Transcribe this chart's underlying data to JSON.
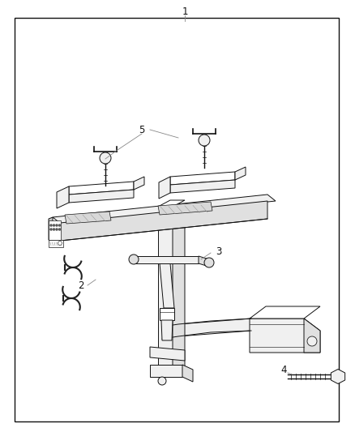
{
  "background_color": "#ffffff",
  "border_color": "#111111",
  "line_color": "#111111",
  "fill_light": "#f0f0f0",
  "fill_mid": "#e0e0e0",
  "fill_dark": "#c8c8c8",
  "fill_white": "#ffffff",
  "callout_color": "#888888",
  "label_fontsize": 8.5,
  "figsize": [
    4.38,
    5.33
  ],
  "dpi": 100
}
